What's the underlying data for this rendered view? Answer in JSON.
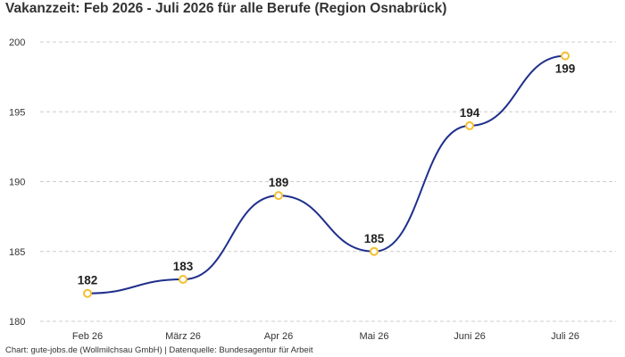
{
  "title": "Vakanzzeit: Feb 2026 - Juli 2026 für alle Berufe (Region Osnabrück)",
  "footer": "Chart: gute-jobs.de (Wollmilchsau GmbH) | Datenquelle: Bundesagentur für Arbeit",
  "colors": {
    "line": "#1f2f8c",
    "marker": "#f3c02f",
    "grid": "#cccccc",
    "text": "#333333"
  },
  "chart_data": {
    "type": "line",
    "categories": [
      "Feb 26",
      "März 26",
      "Apr 26",
      "Mai 26",
      "Juni 26",
      "Juli 26"
    ],
    "values": [
      182,
      183,
      189,
      185,
      194,
      199
    ],
    "ylim": [
      180,
      200
    ],
    "yticks": [
      180,
      185,
      190,
      195,
      200
    ],
    "grid": true,
    "smooth": true,
    "data_labels": true,
    "legend": "none"
  }
}
